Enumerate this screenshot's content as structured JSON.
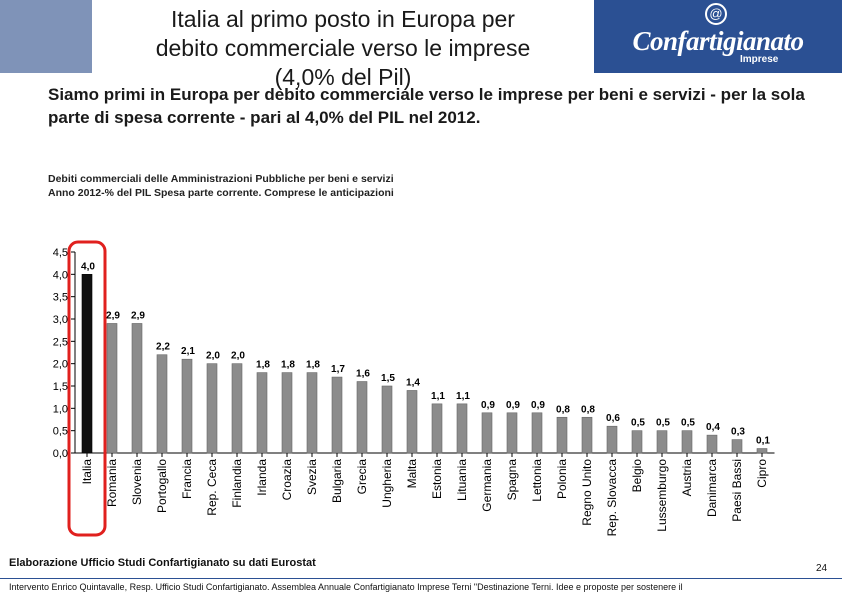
{
  "header": {
    "title_line1": "Italia al primo posto in Europa per",
    "title_line2": "debito commerciale verso le imprese",
    "title_line3": "(4,0% del Pil)",
    "logo_symbol": "@",
    "logo_text": "Confartigianato",
    "logo_sub": "Imprese",
    "brand_color": "#2b5093"
  },
  "lead_text": "Siamo primi in Europa per debito commerciale verso le imprese per beni e servizi - per la sola parte di spesa corrente - pari al 4,0% del PIL nel 2012.",
  "chart_note": {
    "line1": "Debiti commerciali delle Amministrazioni Pubbliche per beni e servizi",
    "line2": "Anno 2012-% del PIL Spesa parte corrente.  Comprese le anticipazioni"
  },
  "chart_data": {
    "type": "bar",
    "categories": [
      "Italia",
      "Romania",
      "Slovenia",
      "Portogallo",
      "Francia",
      "Rep. Ceca",
      "Finlandia",
      "Irlanda",
      "Croazia",
      "Svezia",
      "Bulgaria",
      "Grecia",
      "Ungheria",
      "Malta",
      "Estonia",
      "Lituania",
      "Germania",
      "Spagna",
      "Lettonia",
      "Polonia",
      "Regno Unito",
      "Rep. Slovacca",
      "Belgio",
      "Lussemburgo",
      "Austria",
      "Danimarca",
      "Paesi Bassi",
      "Cipro"
    ],
    "values": [
      4.0,
      2.9,
      2.9,
      2.2,
      2.1,
      2.0,
      2.0,
      1.8,
      1.8,
      1.8,
      1.7,
      1.6,
      1.5,
      1.4,
      1.1,
      1.1,
      0.9,
      0.9,
      0.9,
      0.8,
      0.8,
      0.6,
      0.5,
      0.5,
      0.5,
      0.4,
      0.3,
      0.1
    ],
    "value_labels": [
      "4,0",
      "2,9",
      "2,9",
      "2,2",
      "2,1",
      "2,0",
      "2,0",
      "1,8",
      "1,8",
      "1,8",
      "1,7",
      "1,6",
      "1,5",
      "1,4",
      "1,1",
      "1,1",
      "0,9",
      "0,9",
      "0,9",
      "0,8",
      "0,8",
      "0,6",
      "0,5",
      "0,5",
      "0,5",
      "0,4",
      "0,3",
      "0,1"
    ],
    "yticks": [
      "0,0",
      "0,5",
      "1,0",
      "1,5",
      "2,0",
      "2,5",
      "3,0",
      "3,5",
      "4,0",
      "4,5"
    ],
    "ylim": [
      0,
      4.5
    ],
    "highlight_index": 0,
    "colors": {
      "highlight": "#111111",
      "default": "#8c8c8c",
      "circle": "#e0201e"
    }
  },
  "source": "Elaborazione Ufficio Studi Confartigianato su dati Eurostat",
  "page_number": "24",
  "footer": "Intervento Enrico Quintavalle, Resp. Ufficio Studi Confartigianato. Assemblea Annuale Confartigianato Imprese Terni \"Destinazione Terni. Idee e proposte per sostenere il"
}
